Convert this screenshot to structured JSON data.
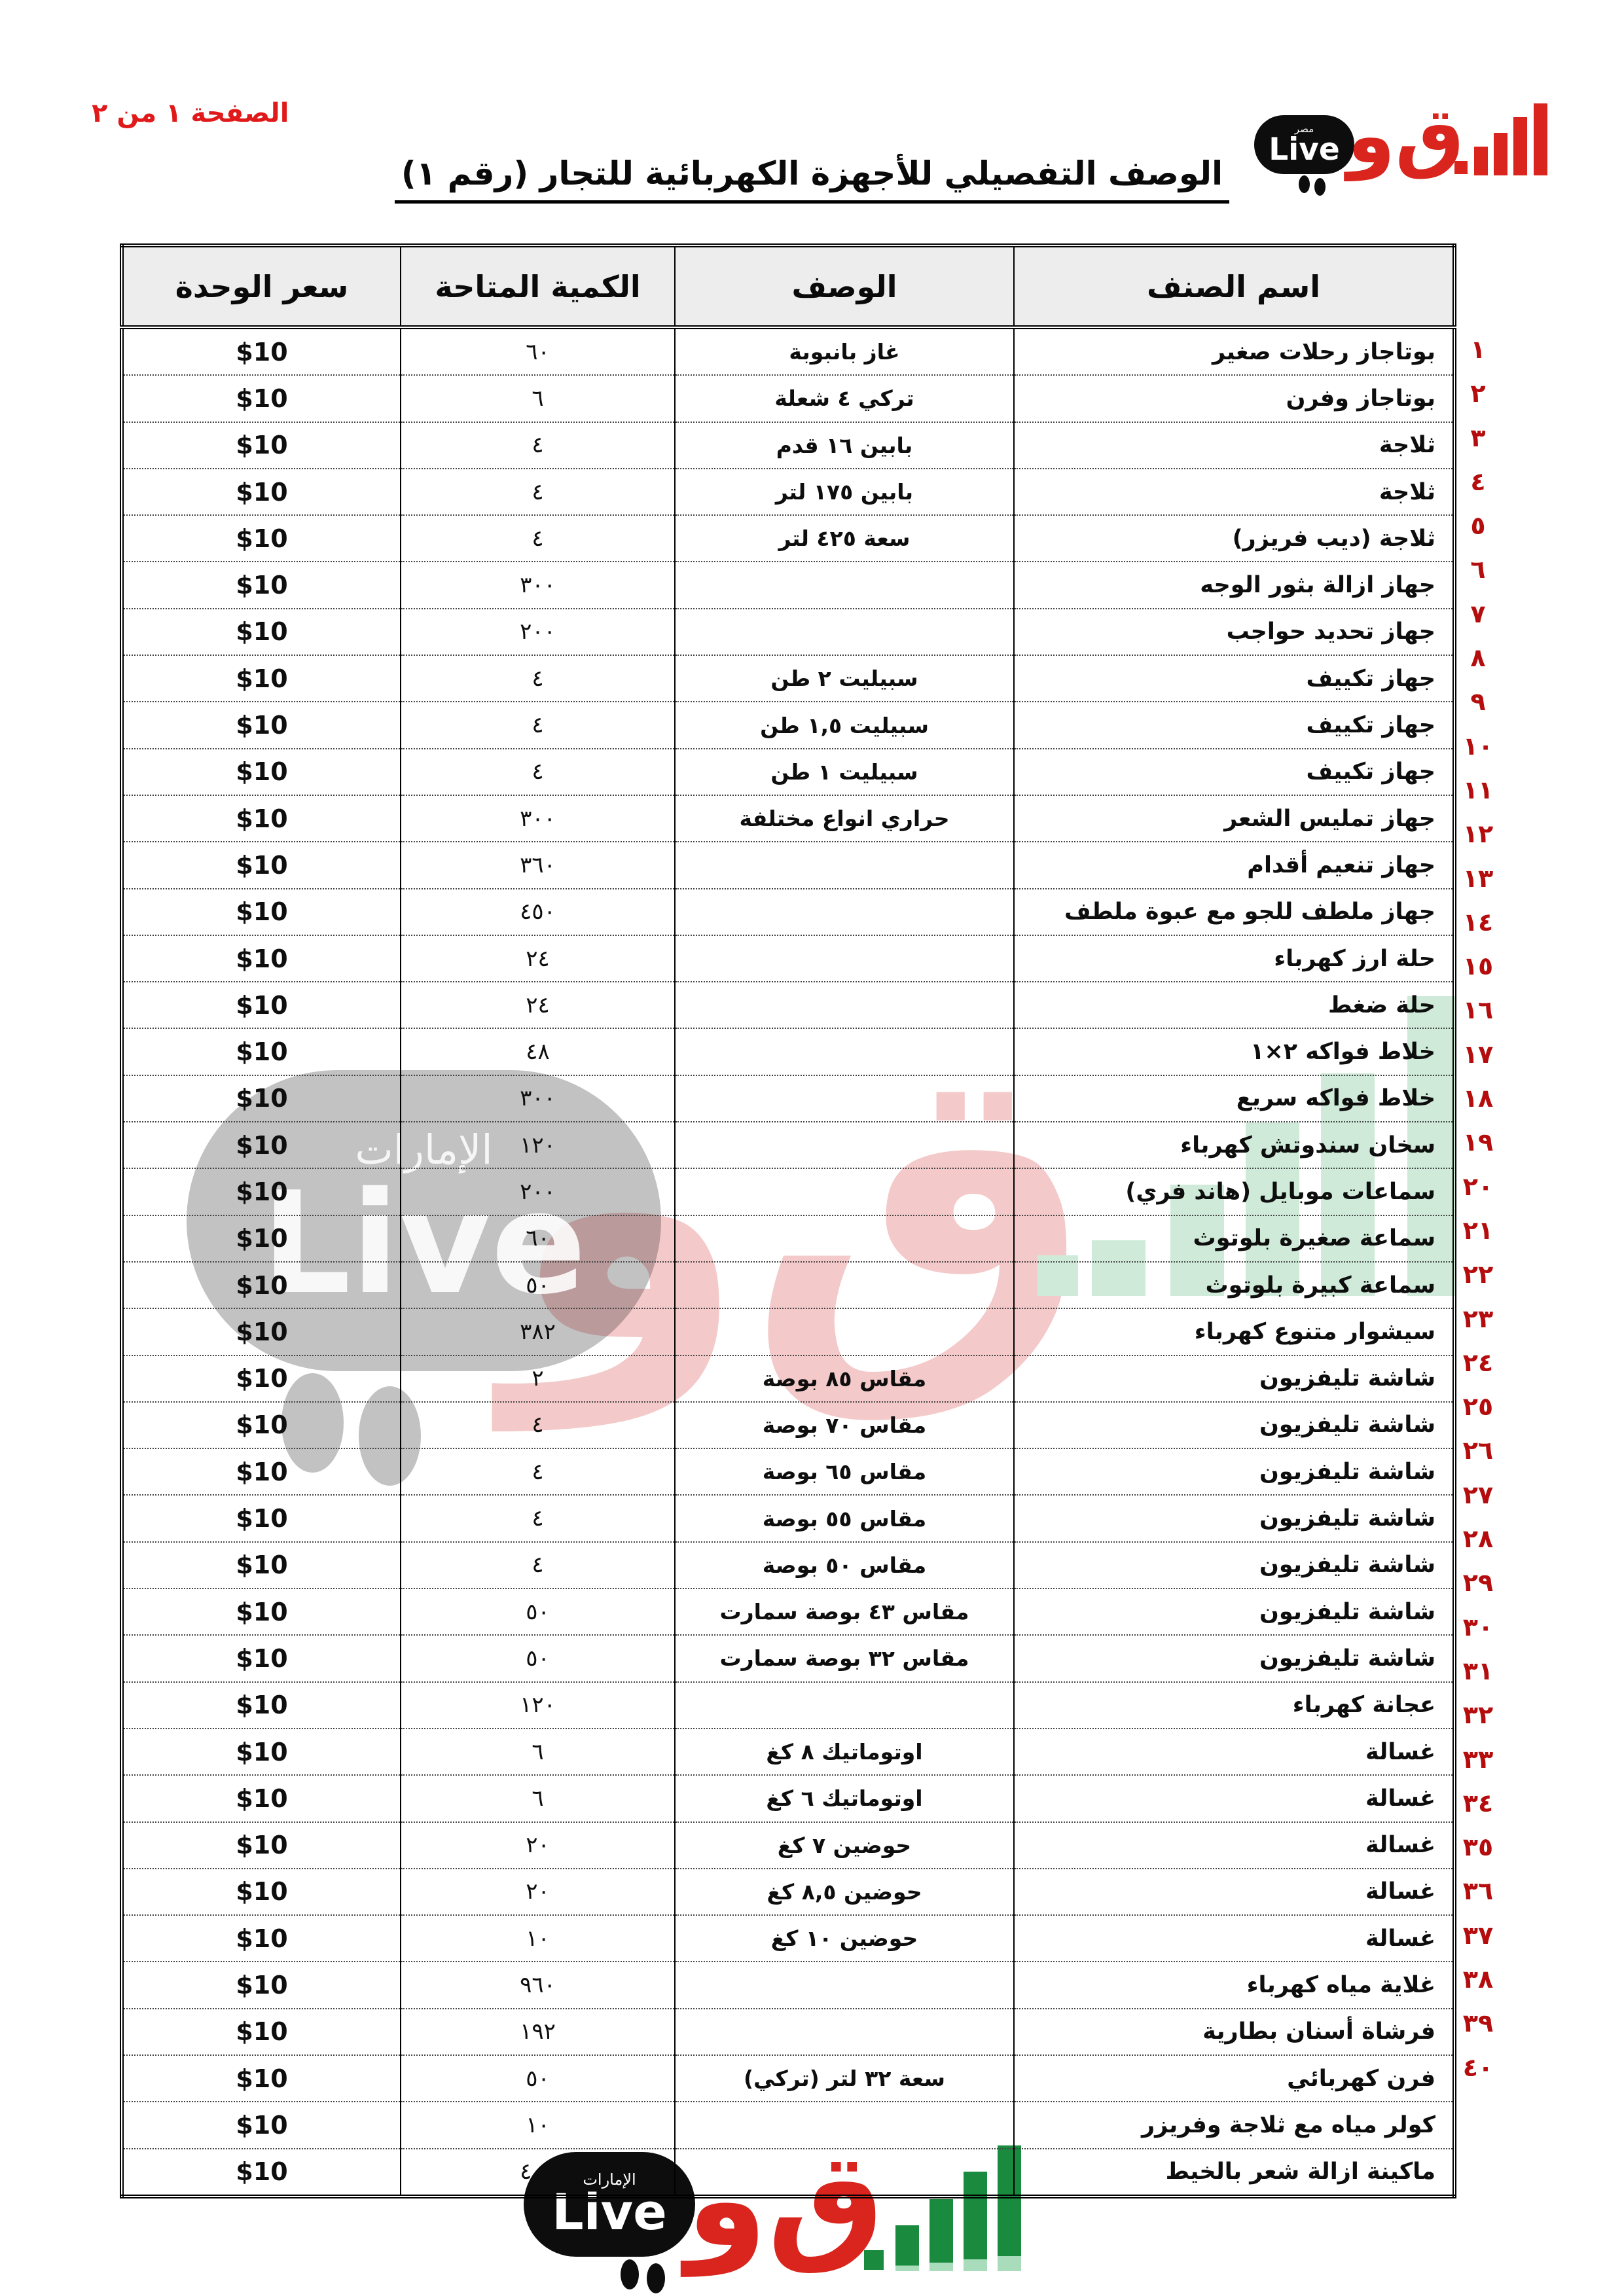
{
  "page": {
    "page_label": "الصفحة ١ من ٢",
    "title": "الوصف التفصيلي للأجهزة الكهربائية للتجار  (رقم ١)"
  },
  "colors": {
    "accent_red": "#d9251d",
    "page_label_red": "#e01a1a",
    "row_number_red": "#b50d0d",
    "bar_green": "#1a8a3e",
    "watermark_green": "#cfead9",
    "watermark_pink": "rgba(214,48,48,0.26)",
    "header_bg": "#ededed"
  },
  "logo_top": {
    "brand_small": "مصر",
    "brand_latin": "Live",
    "brand_arabic": "ق‌و"
  },
  "logo_bottom": {
    "brand_small": "الإمارات",
    "brand_latin": "Live",
    "brand_arabic": "ق‌و"
  },
  "watermark": {
    "brand_small": "الإمارات",
    "brand_latin": "Live",
    "brand_arabic": "ق‌و"
  },
  "table": {
    "headers": {
      "name": "اسم الصنف",
      "desc": "الوصف",
      "qty": "الكمية المتاحة",
      "price": "سعر الوحدة"
    },
    "rows": [
      {
        "no": "١",
        "name": "بوتاجاز رحلات صغير",
        "desc": "غاز بانبوبة",
        "qty": "٦٠",
        "price": "$10"
      },
      {
        "no": "٢",
        "name": "بوتاجاز وفرن",
        "desc": "تركي ٤ شعلة",
        "qty": "٦",
        "price": "$10"
      },
      {
        "no": "٣",
        "name": "ثلاجة",
        "desc": "بابين ١٦ قدم",
        "qty": "٤",
        "price": "$10"
      },
      {
        "no": "٤",
        "name": "ثلاجة",
        "desc": "بابين ١٧٥ لتر",
        "qty": "٤",
        "price": "$10"
      },
      {
        "no": "٥",
        "name": "ثلاجة (ديب فريزر)",
        "desc": "سعة ٤٢٥ لتر",
        "qty": "٤",
        "price": "$10"
      },
      {
        "no": "٦",
        "name": "جهاز ازالة بثور الوجه",
        "desc": "",
        "qty": "٣٠٠",
        "price": "$10"
      },
      {
        "no": "٧",
        "name": "جهاز تحديد حواجب",
        "desc": "",
        "qty": "٢٠٠",
        "price": "$10"
      },
      {
        "no": "٨",
        "name": "جهاز تكييف",
        "desc": "سبيليت ٢ طن",
        "qty": "٤",
        "price": "$10"
      },
      {
        "no": "٩",
        "name": "جهاز تكييف",
        "desc": "سبيليت ١,٥ طن",
        "qty": "٤",
        "price": "$10"
      },
      {
        "no": "١٠",
        "name": "جهاز تكييف",
        "desc": "سبيليت ١ طن",
        "qty": "٤",
        "price": "$10"
      },
      {
        "no": "١١",
        "name": "جهاز تمليس الشعر",
        "desc": "حراري انواع مختلفة",
        "qty": "٣٠٠",
        "price": "$10"
      },
      {
        "no": "١٢",
        "name": "جهاز تنعيم أقدام",
        "desc": "",
        "qty": "٣٦٠",
        "price": "$10"
      },
      {
        "no": "١٣",
        "name": "جهاز ملطف للجو مع عبوة ملطف",
        "desc": "",
        "qty": "٤٥٠",
        "price": "$10"
      },
      {
        "no": "١٤",
        "name": "حلة ارز كهرباء",
        "desc": "",
        "qty": "٢٤",
        "price": "$10"
      },
      {
        "no": "١٥",
        "name": "حلة ضغط",
        "desc": "",
        "qty": "٢٤",
        "price": "$10"
      },
      {
        "no": "١٦",
        "name": "خلاط فواكه ٢×١",
        "desc": "",
        "qty": "٤٨",
        "price": "$10"
      },
      {
        "no": "١٧",
        "name": "خلاط فواكه سريع",
        "desc": "",
        "qty": "٣٠٠",
        "price": "$10"
      },
      {
        "no": "١٨",
        "name": "سخان سندوتش كهرباء",
        "desc": "",
        "qty": "١٢٠",
        "price": "$10"
      },
      {
        "no": "١٩",
        "name": "سماعات موبايل (هاند فري)",
        "desc": "",
        "qty": "٢٠٠",
        "price": "$10"
      },
      {
        "no": "٢٠",
        "name": "سماعة صغيرة بلوتوث",
        "desc": "",
        "qty": "٦٠",
        "price": "$10"
      },
      {
        "no": "٢١",
        "name": "سماعة كبيرة بلوتوث",
        "desc": "",
        "qty": "٥٠",
        "price": "$10"
      },
      {
        "no": "٢٢",
        "name": "سيشوار متنوع كهرباء",
        "desc": "",
        "qty": "٣٨٢",
        "price": "$10"
      },
      {
        "no": "٢٣",
        "name": "شاشة تليفزيون",
        "desc": "مقاس ٨٥ بوصة",
        "qty": "٢",
        "price": "$10"
      },
      {
        "no": "٢٤",
        "name": "شاشة تليفزيون",
        "desc": "مقاس ٧٠ بوصة",
        "qty": "٤",
        "price": "$10"
      },
      {
        "no": "٢٥",
        "name": "شاشة تليفزيون",
        "desc": "مقاس ٦٥ بوصة",
        "qty": "٤",
        "price": "$10"
      },
      {
        "no": "٢٦",
        "name": "شاشة تليفزيون",
        "desc": "مقاس ٥٥ بوصة",
        "qty": "٤",
        "price": "$10"
      },
      {
        "no": "٢٧",
        "name": "شاشة تليفزيون",
        "desc": "مقاس ٥٠ بوصة",
        "qty": "٤",
        "price": "$10"
      },
      {
        "no": "٢٨",
        "name": "شاشة تليفزيون",
        "desc": "مقاس ٤٣ بوصة سمارت",
        "qty": "٥٠",
        "price": "$10"
      },
      {
        "no": "٢٩",
        "name": "شاشة تليفزيون",
        "desc": "مقاس ٣٢ بوصة سمارت",
        "qty": "٥٠",
        "price": "$10"
      },
      {
        "no": "٣٠",
        "name": "عجانة كهرباء",
        "desc": "",
        "qty": "١٢٠",
        "price": "$10"
      },
      {
        "no": "٣١",
        "name": "غسالة",
        "desc": "اوتوماتيك ٨ كغ",
        "qty": "٦",
        "price": "$10"
      },
      {
        "no": "٣٢",
        "name": "غسالة",
        "desc": "اوتوماتيك ٦ كغ",
        "qty": "٦",
        "price": "$10"
      },
      {
        "no": "٣٣",
        "name": "غسالة",
        "desc": "حوضين ٧ كغ",
        "qty": "٢٠",
        "price": "$10"
      },
      {
        "no": "٣٤",
        "name": "غسالة",
        "desc": "حوضين ٨,٥ كغ",
        "qty": "٢٠",
        "price": "$10"
      },
      {
        "no": "٣٥",
        "name": "غسالة",
        "desc": "حوضين ١٠ كغ",
        "qty": "١٠",
        "price": "$10"
      },
      {
        "no": "٣٦",
        "name": "غلاية مياه كهرباء",
        "desc": "",
        "qty": "٩٦٠",
        "price": "$10"
      },
      {
        "no": "٣٧",
        "name": "فرشاة أسنان بطارية",
        "desc": "",
        "qty": "١٩٢",
        "price": "$10"
      },
      {
        "no": "٣٨",
        "name": "فرن كهربائي",
        "desc": "سعة ٣٢ لتر (تركي)",
        "qty": "٥٠",
        "price": "$10"
      },
      {
        "no": "٣٩",
        "name": "كولر مياه مع ثلاجة وفريزر",
        "desc": "",
        "qty": "١٠",
        "price": "$10"
      },
      {
        "no": "٤٠",
        "name": "ماكينة ازالة شعر بالخيط",
        "desc": "",
        "qty": "٤٠٠",
        "price": "$10"
      }
    ]
  }
}
